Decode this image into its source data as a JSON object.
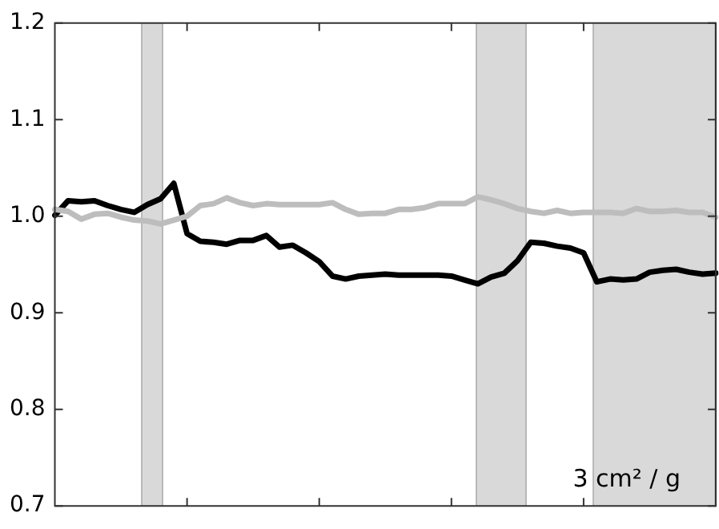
{
  "chart_data": {
    "type": "line",
    "categories": [
      null,
      null,
      null,
      null,
      null,
      null,
      null,
      null,
      null,
      null,
      null,
      null,
      null,
      null,
      null,
      null,
      null,
      null,
      null,
      null,
      null,
      null,
      null,
      null,
      null,
      null,
      null,
      null,
      null,
      null,
      null,
      null,
      null,
      null,
      null,
      null,
      null,
      null,
      null,
      null,
      null,
      null,
      null,
      null,
      null,
      null,
      null,
      null,
      null,
      null,
      null
    ],
    "ylim": [
      0.7,
      1.2
    ],
    "yticks": [
      0.7,
      0.8,
      0.9,
      {
        "value": 1,
        "label": "1.0"
      },
      1.1,
      1.2
    ],
    "tick_labels": "y",
    "grid": false,
    "legend": false,
    "marker": "none",
    "line_style": "solid",
    "series": [
      {
        "color": "#bdbdbd",
        "values": [
          1.007,
          1.005,
          0.997,
          1.002,
          1.003,
          0.999,
          0.996,
          0.995,
          0.992,
          0.996,
          1.0,
          1.011,
          1.013,
          1.019,
          1.014,
          1.011,
          1.013,
          1.012,
          1.012,
          1.012,
          1.012,
          1.014,
          1.007,
          1.002,
          1.003,
          1.003,
          1.007,
          1.007,
          1.009,
          1.013,
          1.013,
          1.013,
          1.02,
          1.017,
          1.013,
          1.008,
          1.005,
          1.003,
          1.006,
          1.003,
          1.004,
          1.004,
          1.004,
          1.003,
          1.008,
          1.005,
          1.005,
          1.006,
          1.004,
          1.004,
          0.999
        ]
      },
      {
        "color": "#000000",
        "values": [
          1.001,
          1.016,
          1.015,
          1.016,
          1.011,
          1.007,
          1.004,
          1.012,
          1.018,
          1.034,
          0.982,
          0.974,
          0.973,
          0.971,
          0.975,
          0.975,
          0.98,
          0.968,
          0.97,
          0.962,
          0.953,
          0.938,
          0.935,
          0.938,
          0.939,
          0.94,
          0.939,
          0.939,
          0.939,
          0.939,
          0.938,
          0.934,
          0.93,
          0.937,
          0.941,
          0.954,
          0.973,
          0.972,
          0.969,
          0.967,
          0.962,
          0.932,
          0.935,
          0.934,
          0.935,
          0.942,
          0.944,
          0.945,
          0.942,
          0.94,
          0.941
        ]
      }
    ],
    "annotations": [
      "3 cm² / g"
    ]
  }
}
